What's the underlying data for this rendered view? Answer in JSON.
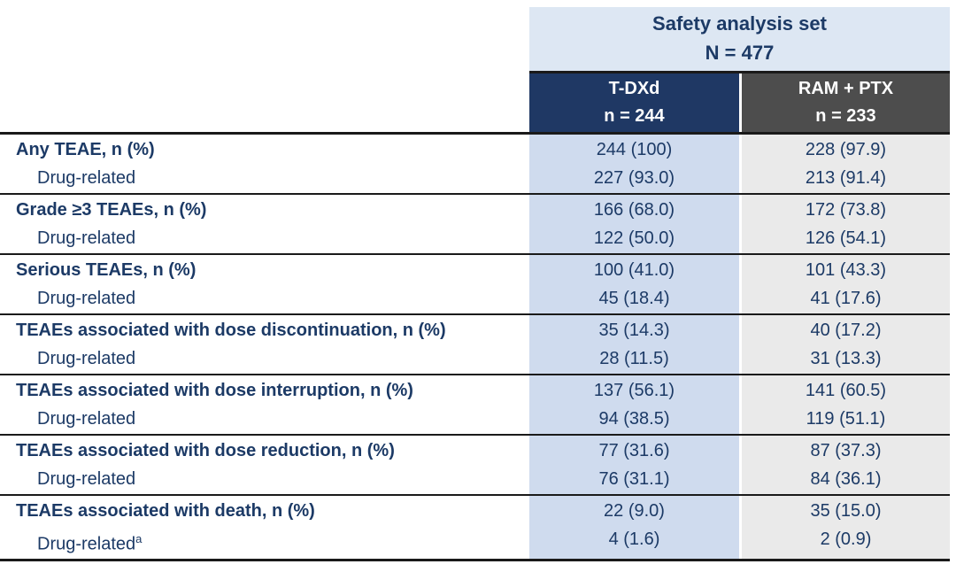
{
  "table": {
    "span_header": {
      "line1": "Safety analysis set",
      "line2": "N = 477"
    },
    "columns": [
      {
        "label": "T-DXd",
        "n_label": "n = 244"
      },
      {
        "label": "RAM + PTX",
        "n_label": "n = 233"
      }
    ],
    "rows": [
      {
        "label": "Any TEAE, n (%)",
        "sub_label": "Drug-related",
        "tdxd": "244 (100)",
        "tdxd_sub": "227 (93.0)",
        "ram": "228 (97.9)",
        "ram_sub": "213 (91.4)"
      },
      {
        "label": "Grade ≥3 TEAEs, n (%)",
        "sub_label": "Drug-related",
        "tdxd": "166 (68.0)",
        "tdxd_sub": "122 (50.0)",
        "ram": "172 (73.8)",
        "ram_sub": "126 (54.1)"
      },
      {
        "label": "Serious TEAEs, n (%)",
        "sub_label": "Drug-related",
        "tdxd": "100 (41.0)",
        "tdxd_sub": "45 (18.4)",
        "ram": "101 (43.3)",
        "ram_sub": "41 (17.6)"
      },
      {
        "label": "TEAEs associated with dose discontinuation, n (%)",
        "sub_label": "Drug-related",
        "tdxd": "35 (14.3)",
        "tdxd_sub": "28 (11.5)",
        "ram": "40 (17.2)",
        "ram_sub": "31 (13.3)"
      },
      {
        "label": "TEAEs associated with dose interruption, n (%)",
        "sub_label": "Drug-related",
        "tdxd": "137 (56.1)",
        "tdxd_sub": "94 (38.5)",
        "ram": "141 (60.5)",
        "ram_sub": "119 (51.1)"
      },
      {
        "label": "TEAEs associated with dose reduction, n (%)",
        "sub_label": "Drug-related",
        "tdxd": "77 (31.6)",
        "tdxd_sub": "76 (31.1)",
        "ram": "87 (37.3)",
        "ram_sub": "84 (36.1)"
      },
      {
        "label": "TEAEs associated with death, n (%)",
        "sub_label": "Drug-related",
        "sub_label_sup": "a",
        "tdxd": "22 (9.0)",
        "tdxd_sub": "4 (1.6)",
        "ram": "35 (15.0)",
        "ram_sub": "2 (0.9)"
      }
    ]
  },
  "colors": {
    "span_header_bg": "#dde7f3",
    "tdxd_header_bg": "#1f3864",
    "ram_ptx_header_bg": "#4d4d4d",
    "tdxd_body_bg": "#cfdbee",
    "ram_ptx_body_bg": "#eaeaea",
    "text_navy": "#1c3a66",
    "rule_line": "#1a1a1a"
  }
}
